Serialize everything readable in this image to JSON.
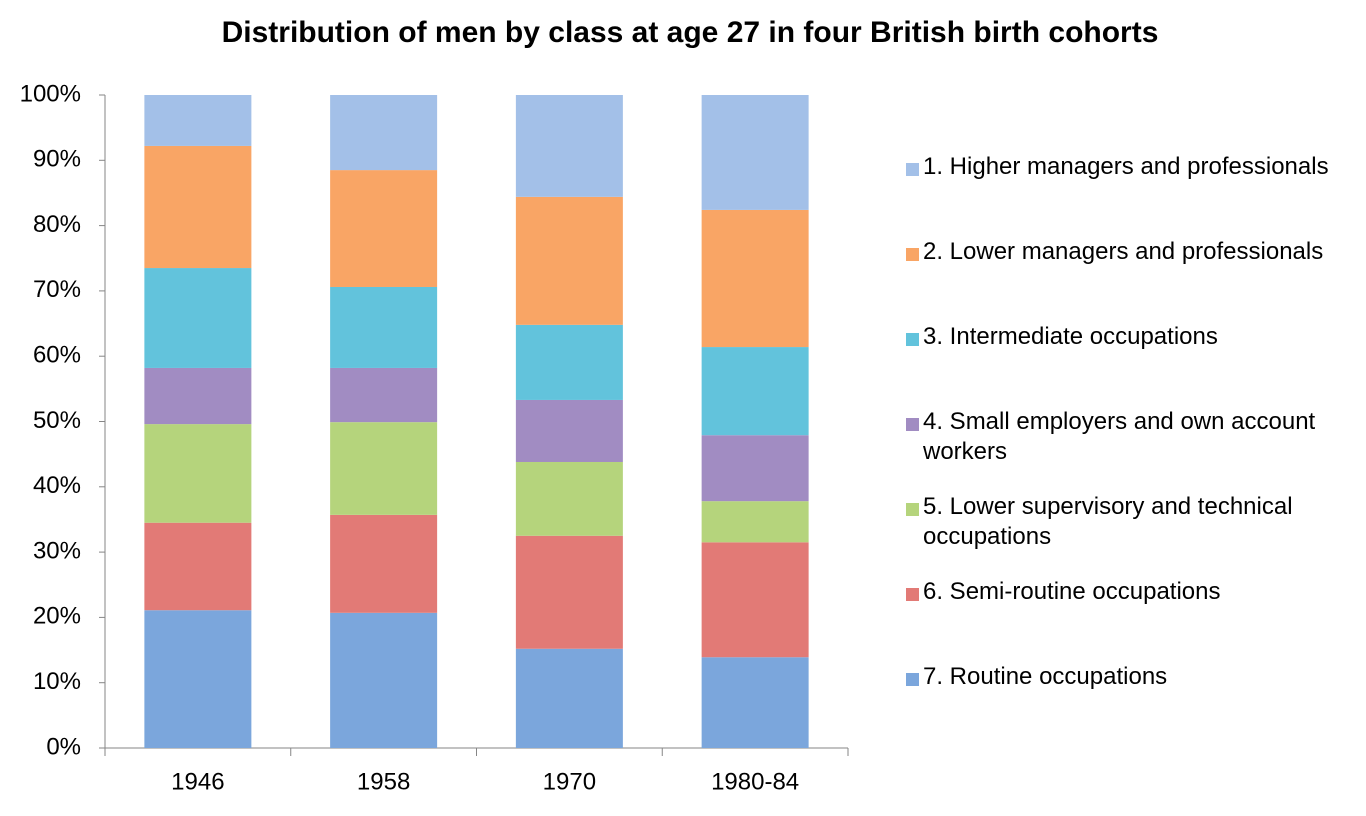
{
  "chart_data": {
    "type": "stacked-bar",
    "title": "Distribution of men by class at age 27 in four British birth cohorts",
    "categories": [
      "1946",
      "1958",
      "1970",
      "1980-84"
    ],
    "series": [
      {
        "name": "1. Higher managers and professionals",
        "color": "#a3c0e8",
        "values": [
          7.8,
          11.5,
          15.6,
          17.6
        ]
      },
      {
        "name": "2. Lower managers and professionals",
        "color": "#f9a565",
        "values": [
          18.7,
          17.9,
          19.6,
          21.0
        ]
      },
      {
        "name": "3. Intermediate occupations",
        "color": "#62c3dc",
        "values": [
          15.3,
          12.4,
          11.5,
          13.5
        ]
      },
      {
        "name": "4. Small employers and own account workers",
        "color": "#a18cc2",
        "values": [
          8.6,
          8.3,
          9.5,
          10.1
        ]
      },
      {
        "name": "5. Lower supervisory and technical occupations",
        "color": "#b5d47c",
        "values": [
          15.1,
          14.2,
          11.3,
          6.3
        ]
      },
      {
        "name": "6. Semi-routine occupations",
        "color": "#e27a76",
        "values": [
          13.4,
          15.0,
          17.3,
          17.6
        ]
      },
      {
        "name": "7. Routine occupations",
        "color": "#7ba6dc",
        "values": [
          21.1,
          20.7,
          15.2,
          13.9
        ]
      }
    ],
    "ylim": [
      0,
      100
    ],
    "yticks": [
      {
        "value": 0,
        "label": "0%"
      },
      {
        "value": 10,
        "label": "10%"
      },
      {
        "value": 20,
        "label": "20%"
      },
      {
        "value": 30,
        "label": "30%"
      },
      {
        "value": 40,
        "label": "40%"
      },
      {
        "value": 50,
        "label": "50%"
      },
      {
        "value": 60,
        "label": "60%"
      },
      {
        "value": 70,
        "label": "70%"
      },
      {
        "value": 80,
        "label": "80%"
      },
      {
        "value": 90,
        "label": "90%"
      },
      {
        "value": 100,
        "label": "100%"
      }
    ],
    "grid": false
  }
}
